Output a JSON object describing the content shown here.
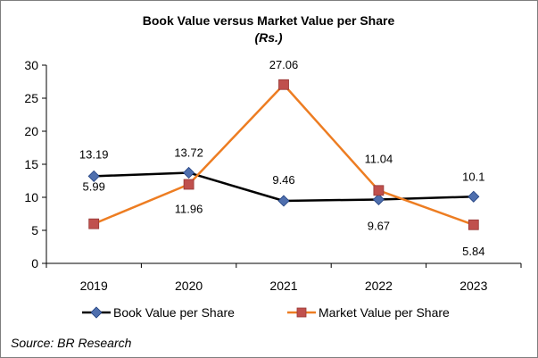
{
  "chart_data": {
    "type": "line",
    "title": "Book Value versus Market Value per Share",
    "subtitle": "(Rs.)",
    "xlabel": "",
    "ylabel": "",
    "categories": [
      "2019",
      "2020",
      "2021",
      "2022",
      "2023"
    ],
    "ylim": [
      0,
      30
    ],
    "yticks": [
      "0",
      "5",
      "10",
      "15",
      "20",
      "25",
      "30"
    ],
    "grid": false,
    "legend_position": "bottom",
    "series": [
      {
        "name": "Book Value per Share",
        "values": [
          13.19,
          13.72,
          9.46,
          9.67,
          10.1
        ],
        "labels": [
          "13.19",
          "13.72",
          "9.46",
          "9.67",
          "10.1"
        ],
        "color": "#000000",
        "marker_color": "#4f6fae",
        "marker": "diamond"
      },
      {
        "name": "Market Value per Share",
        "values": [
          5.99,
          11.96,
          27.06,
          11.04,
          5.84
        ],
        "labels": [
          "5.99",
          "11.96",
          "27.06",
          "11.04",
          "5.84"
        ],
        "color": "#ed7d22",
        "marker_color": "#c0504d",
        "marker": "square"
      }
    ]
  },
  "source": "Source: BR Research"
}
